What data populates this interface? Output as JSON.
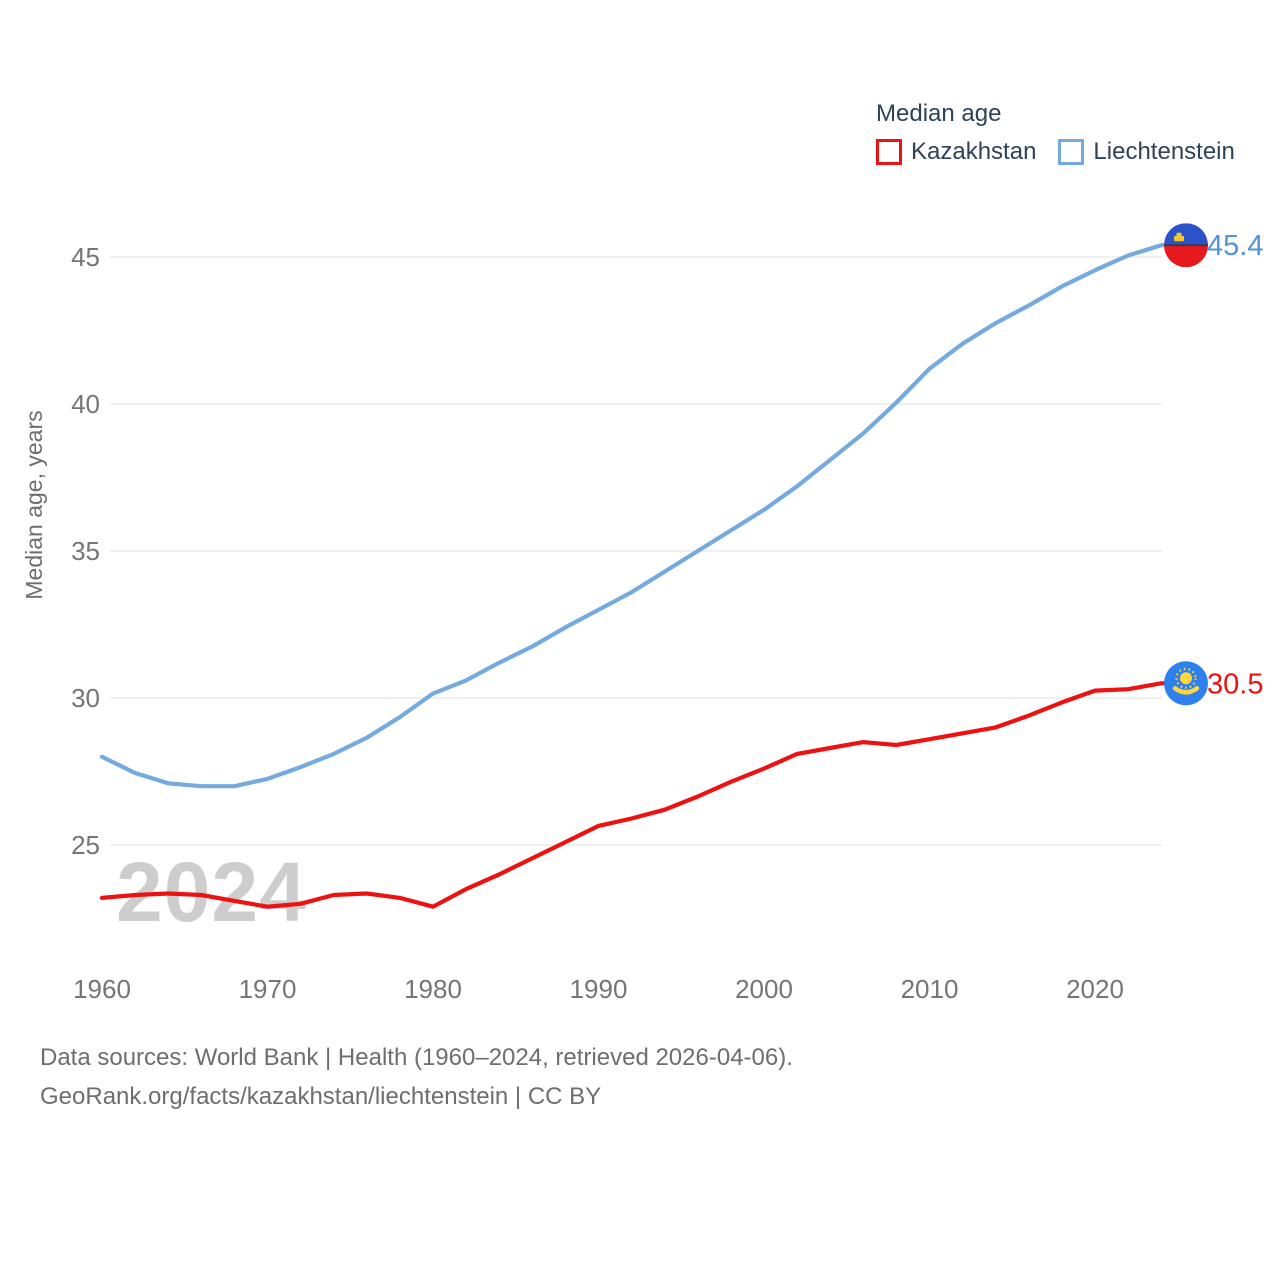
{
  "legend": {
    "title": "Median age"
  },
  "watermark": "2024",
  "footer": {
    "line1": "Data sources: World Bank | Health (1960–2024, retrieved 2026-04-06).",
    "line2": "GeoRank.org/facts/kazakhstan/liechtenstein | CC BY"
  },
  "chart_data": {
    "type": "line",
    "title": "Median age",
    "xlabel": "",
    "ylabel": "Median age, years",
    "grid": true,
    "legend_position": "top-right",
    "x_ticks": [
      1960,
      1970,
      1980,
      1990,
      2000,
      2010,
      2020
    ],
    "y_ticks": [
      25,
      30,
      35,
      40,
      45
    ],
    "xlim": [
      1960,
      2024
    ],
    "ylim": [
      22.5,
      46.5
    ],
    "series": [
      {
        "name": "Kazakhstan",
        "color": "#ee1111",
        "label_color": "#ee1111",
        "end_label": "30.5",
        "flag_icon": "kazakhstan-flag-icon",
        "x": [
          1960,
          1962,
          1964,
          1966,
          1968,
          1970,
          1972,
          1974,
          1976,
          1978,
          1980,
          1982,
          1984,
          1986,
          1988,
          1990,
          1992,
          1994,
          1996,
          1998,
          2000,
          2002,
          2004,
          2006,
          2008,
          2010,
          2012,
          2014,
          2016,
          2018,
          2020,
          2022,
          2024
        ],
        "y": [
          23.2,
          23.3,
          23.35,
          23.3,
          23.1,
          22.9,
          23.0,
          23.3,
          23.35,
          23.2,
          22.9,
          23.5,
          24.0,
          24.55,
          25.1,
          25.65,
          25.9,
          26.2,
          26.65,
          27.15,
          27.6,
          28.1,
          28.3,
          28.5,
          28.4,
          28.6,
          28.8,
          29.0,
          29.4,
          29.85,
          30.25,
          30.3,
          30.5
        ]
      },
      {
        "name": "Liechtenstein",
        "color": "#74aadf",
        "label_color": "#4f94d8",
        "end_label": "45.4",
        "flag_icon": "liechtenstein-flag-icon",
        "x": [
          1960,
          1962,
          1964,
          1966,
          1968,
          1970,
          1972,
          1974,
          1976,
          1978,
          1980,
          1982,
          1984,
          1986,
          1988,
          1990,
          1992,
          1994,
          1996,
          1998,
          2000,
          2002,
          2004,
          2006,
          2008,
          2010,
          2012,
          2014,
          2016,
          2018,
          2020,
          2022,
          2024
        ],
        "y": [
          28.0,
          27.45,
          27.1,
          27.0,
          27.0,
          27.25,
          27.65,
          28.1,
          28.65,
          29.35,
          30.15,
          30.6,
          31.2,
          31.75,
          32.4,
          33.0,
          33.6,
          34.3,
          35.0,
          35.7,
          36.4,
          37.2,
          38.1,
          39.0,
          40.05,
          41.2,
          42.05,
          42.75,
          43.35,
          44.0,
          44.55,
          45.05,
          45.4
        ]
      }
    ]
  }
}
